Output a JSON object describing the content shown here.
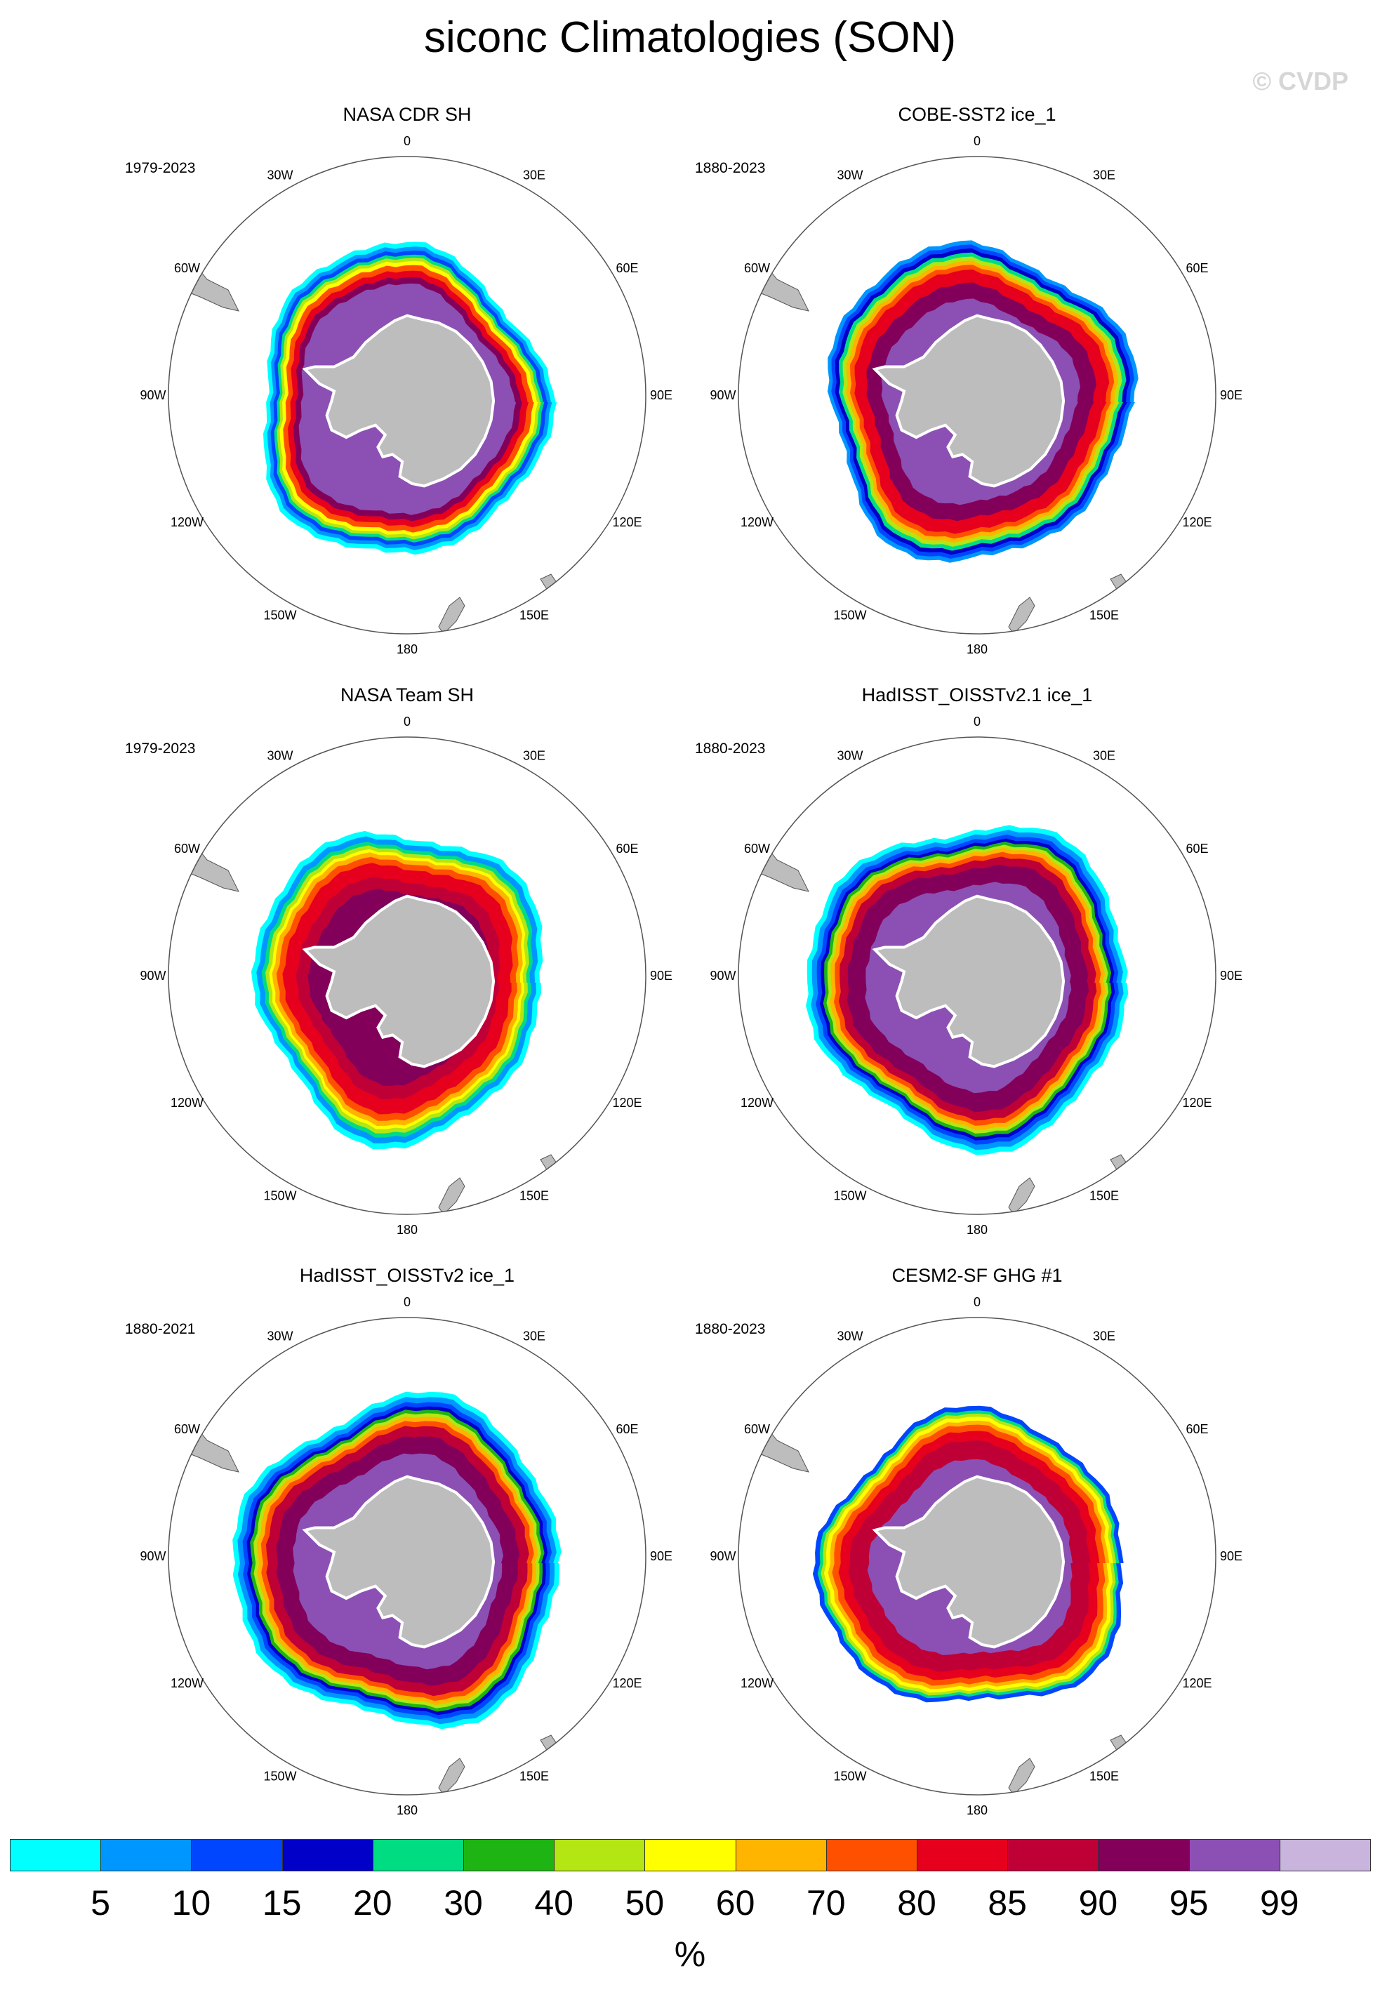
{
  "title": "siconc Climatologies (SON)",
  "copyright": "© CVDP",
  "units": "%",
  "lon_labels": [
    "0",
    "30E",
    "60E",
    "90E",
    "120E",
    "150E",
    "180",
    "150W",
    "120W",
    "90W",
    "60W",
    "30W"
  ],
  "colorbar": {
    "colors": [
      "#00ffff",
      "#0096ff",
      "#0046ff",
      "#0000c8",
      "#00dc82",
      "#1eb414",
      "#b4e614",
      "#ffff00",
      "#ffb400",
      "#ff5000",
      "#e6001e",
      "#be0037",
      "#82005a",
      "#8c50b4",
      "#c8b4dc"
    ],
    "labels": [
      "5",
      "10",
      "15",
      "20",
      "30",
      "40",
      "50",
      "60",
      "70",
      "80",
      "85",
      "90",
      "95",
      "99"
    ]
  },
  "panels": [
    {
      "title": "NASA CDR SH",
      "years": "1979-2023",
      "style": "cdr"
    },
    {
      "title": "COBE-SST2 ice_1",
      "years": "1880-2023",
      "style": "cobe"
    },
    {
      "title": "NASA Team SH",
      "years": "1979-2023",
      "style": "team"
    },
    {
      "title": "HadISST_OISSTv2.1 ice_1",
      "years": "1880-2023",
      "style": "had21"
    },
    {
      "title": "HadISST_OISSTv2 ice_1",
      "years": "1880-2021",
      "style": "had2"
    },
    {
      "title": "CESM2-SF GHG #1",
      "years": "1880-2023",
      "style": "cesm"
    }
  ]
}
